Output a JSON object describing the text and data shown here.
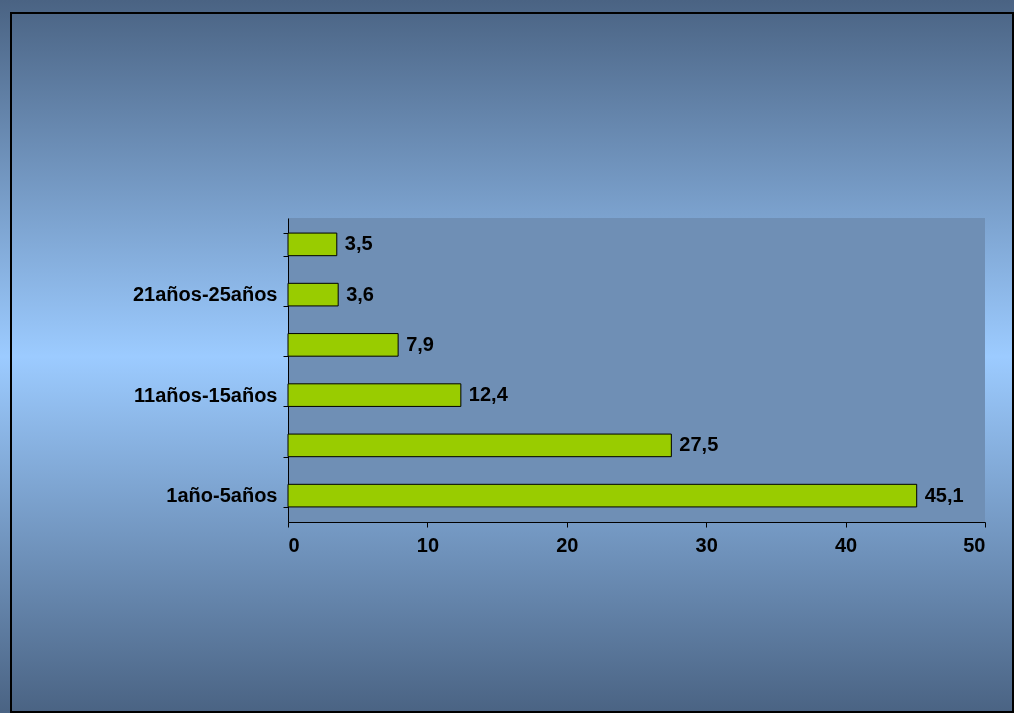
{
  "chart_data": {
    "type": "bar",
    "orientation": "horizontal",
    "categories": [
      null,
      "21años-25años",
      null,
      "11años-15años",
      null,
      "1año-5años"
    ],
    "values": [
      3.5,
      3.6,
      7.9,
      12.4,
      27.5,
      45.1
    ],
    "value_labels": [
      "3,5",
      "3,6",
      "7,9",
      "12,4",
      "27,5",
      "45,1"
    ],
    "color": "#99cc00",
    "xlim": [
      0,
      50
    ],
    "xticks": [
      0,
      10,
      20,
      30,
      40,
      50
    ],
    "grid": false
  }
}
